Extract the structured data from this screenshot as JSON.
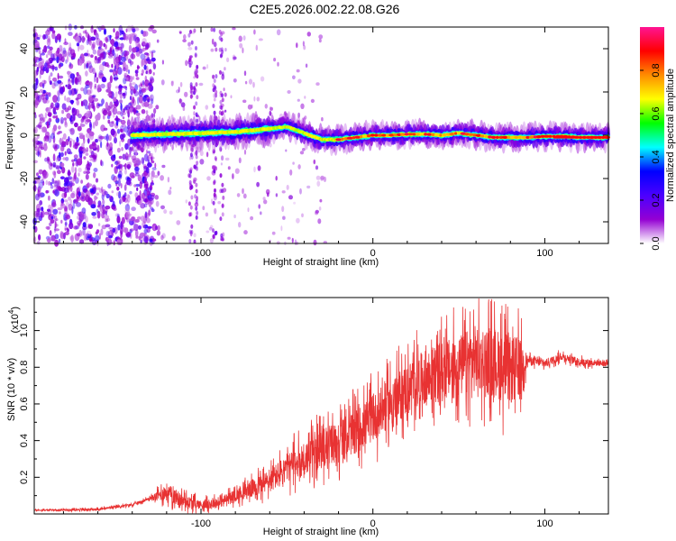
{
  "figure": {
    "title": "C2E5.2026.002.22.08.G26"
  },
  "chart_data": [
    {
      "type": "heatmap",
      "name": "spectrogram",
      "xlabel": "Height of straight line (km)",
      "ylabel": "Frequency (Hz)",
      "xlim": [
        -197,
        137
      ],
      "ylim": [
        -50,
        50
      ],
      "x_ticks": [
        -100,
        0,
        100
      ],
      "y_ticks": [
        -40,
        -20,
        0,
        20,
        40
      ],
      "colorbar": {
        "label": "Normalized spectral amplitude",
        "range": [
          0,
          1
        ],
        "ticks": [
          0.0,
          0.2,
          0.4,
          0.6,
          0.8
        ],
        "colors": [
          "#ffffff",
          "#9400d3",
          "#4b00ff",
          "#0000ff",
          "#00ffff",
          "#00ff00",
          "#ffff00",
          "#ff8c00",
          "#ff0000",
          "#ff1493"
        ]
      },
      "ridge": {
        "x": [
          -140,
          -120,
          -100,
          -80,
          -60,
          -50,
          -40,
          -30,
          -20,
          -10,
          0,
          10,
          20,
          30,
          40,
          50,
          60,
          70,
          80,
          90,
          100,
          110,
          120,
          137
        ],
        "y": [
          0,
          0.5,
          1,
          1.5,
          3,
          4,
          1,
          -2,
          -2,
          -1,
          0,
          0,
          0.5,
          0.5,
          0,
          1,
          0,
          -1,
          -1,
          -1,
          -0.5,
          -0.5,
          -1,
          -1
        ]
      }
    },
    {
      "type": "line",
      "name": "snr",
      "xlabel": "Height of straight line (km)",
      "ylabel": "SNR (10 * v/v)",
      "y_scale_label": "(x10",
      "y_scale_exp": "4",
      "xlim": [
        -197,
        137
      ],
      "ylim": [
        0,
        1.18
      ],
      "x_ticks": [
        -100,
        0,
        100
      ],
      "y_ticks": [
        0.2,
        0.4,
        0.6,
        0.8,
        1.0
      ],
      "color": "#e83232",
      "envelope": {
        "x": [
          -197,
          -160,
          -140,
          -125,
          -120,
          -110,
          -100,
          -90,
          -80,
          -70,
          -60,
          -50,
          -40,
          -30,
          -20,
          -10,
          0,
          10,
          20,
          30,
          40,
          50,
          60,
          70,
          80,
          85,
          90,
          100,
          110,
          120,
          137
        ],
        "y": [
          0.02,
          0.025,
          0.05,
          0.1,
          0.12,
          0.07,
          0.05,
          0.06,
          0.1,
          0.14,
          0.18,
          0.25,
          0.3,
          0.35,
          0.4,
          0.45,
          0.52,
          0.6,
          0.68,
          0.74,
          0.78,
          0.8,
          0.85,
          0.83,
          0.78,
          0.8,
          0.84,
          0.82,
          0.86,
          0.83,
          0.82
        ]
      },
      "amplitude": {
        "x": [
          -197,
          -130,
          -120,
          -100,
          -80,
          -60,
          -40,
          -20,
          0,
          20,
          40,
          60,
          75,
          85,
          90,
          137
        ],
        "y": [
          0.005,
          0.01,
          0.06,
          0.03,
          0.04,
          0.08,
          0.12,
          0.14,
          0.16,
          0.18,
          0.2,
          0.23,
          0.24,
          0.22,
          0.03,
          0.02
        ]
      }
    }
  ]
}
